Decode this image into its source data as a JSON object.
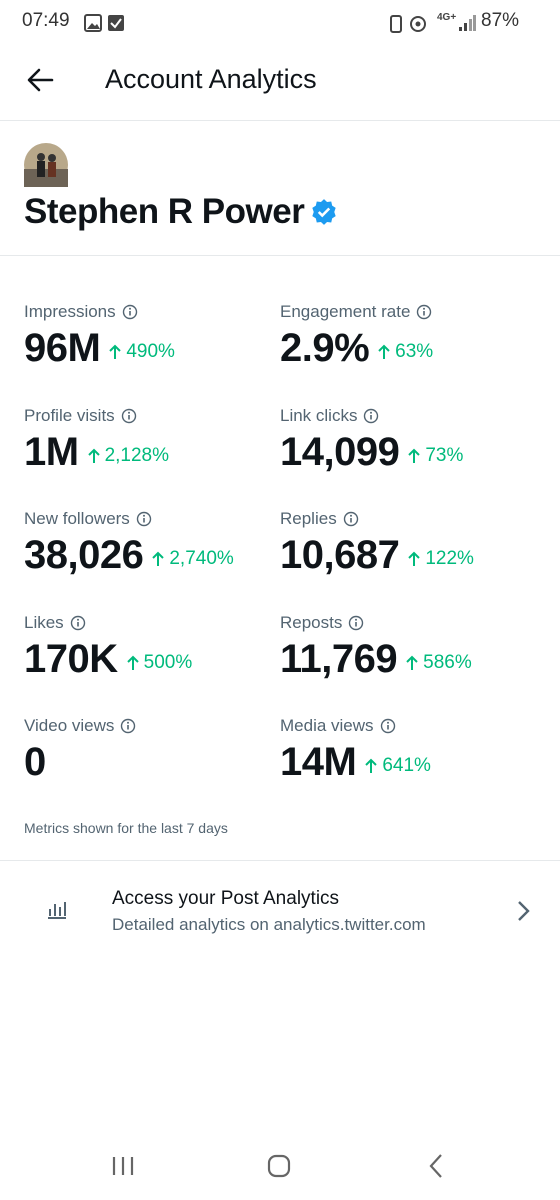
{
  "status_bar": {
    "time": "07:49",
    "network": "4G+",
    "battery": "87%"
  },
  "header": {
    "title": "Account Analytics"
  },
  "profile": {
    "name": "Stephen R Power"
  },
  "metrics": [
    {
      "label": "Impressions",
      "value": "96M",
      "change": "490%"
    },
    {
      "label": "Engagement rate",
      "value": "2.9%",
      "change": "63%"
    },
    {
      "label": "Profile visits",
      "value": "1M",
      "change": "2,128%"
    },
    {
      "label": "Link clicks",
      "value": "14,099",
      "change": "73%"
    },
    {
      "label": "New followers",
      "value": "38,026",
      "change": "2,740%"
    },
    {
      "label": "Replies",
      "value": "10,687",
      "change": "122%"
    },
    {
      "label": "Likes",
      "value": "170K",
      "change": "500%"
    },
    {
      "label": "Reposts",
      "value": "11,769",
      "change": "586%"
    },
    {
      "label": "Video views",
      "value": "0",
      "change": null
    },
    {
      "label": "Media views",
      "value": "14M",
      "change": "641%"
    }
  ],
  "note": "Metrics shown for the last 7 days",
  "link_card": {
    "title": "Access your Post Analytics",
    "subtitle": "Detailed analytics on analytics.twitter.com"
  }
}
